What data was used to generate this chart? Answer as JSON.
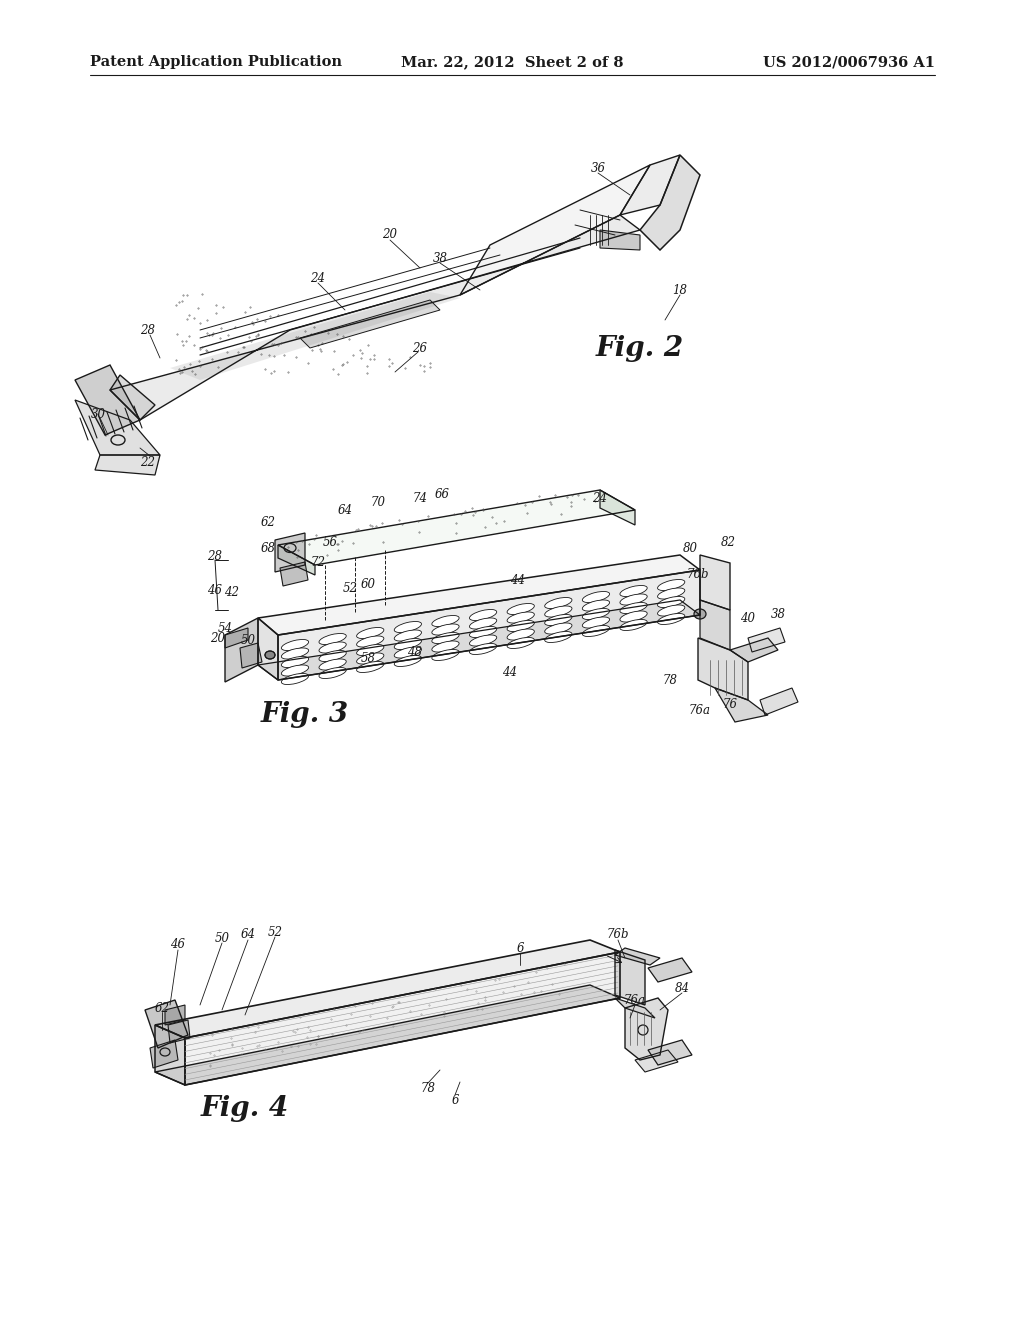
{
  "background_color": "#ffffff",
  "header_left": "Patent Application Publication",
  "header_middle": "Mar. 22, 2012  Sheet 2 of 8",
  "header_right": "US 2012/0067936 A1",
  "line_color": "#1a1a1a",
  "text_color": "#1a1a1a",
  "number_fontsize": 8.5,
  "fig_label_fontsize": 20
}
